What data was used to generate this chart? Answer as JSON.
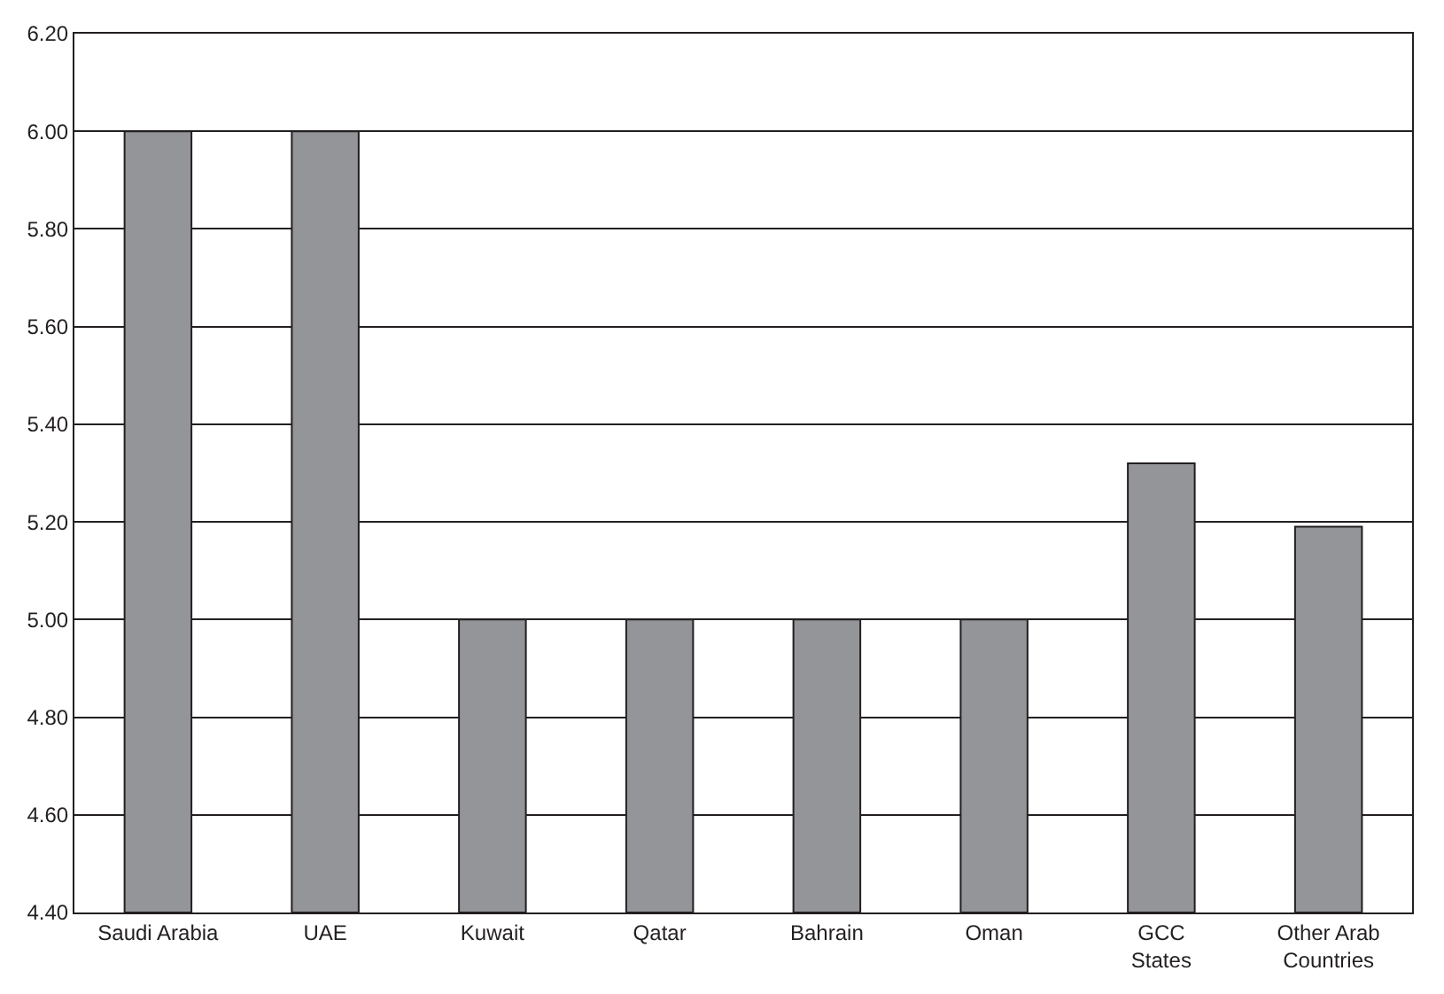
{
  "chart_data": {
    "type": "bar",
    "categories": [
      "Saudi Arabia",
      "UAE",
      "Kuwait",
      "Qatar",
      "Bahrain",
      "Oman",
      "GCC\nStates",
      "Other Arab\nCountries"
    ],
    "values": [
      6.0,
      6.0,
      5.0,
      5.0,
      5.0,
      5.0,
      5.32,
      5.19
    ],
    "color": "#939598",
    "ylim": [
      4.4,
      6.2
    ],
    "yticks": [
      {
        "value": 4.4,
        "label": "4.40"
      },
      {
        "value": 4.6,
        "label": "4.60"
      },
      {
        "value": 4.8,
        "label": "4.80"
      },
      {
        "value": 5.0,
        "label": "5.00"
      },
      {
        "value": 5.2,
        "label": "5.20"
      },
      {
        "value": 5.4,
        "label": "5.40"
      },
      {
        "value": 5.6,
        "label": "5.60"
      },
      {
        "value": 5.8,
        "label": "5.80"
      },
      {
        "value": 6.0,
        "label": "6.00"
      },
      {
        "value": 6.2,
        "label": "6.20"
      }
    ],
    "grid": "y"
  }
}
